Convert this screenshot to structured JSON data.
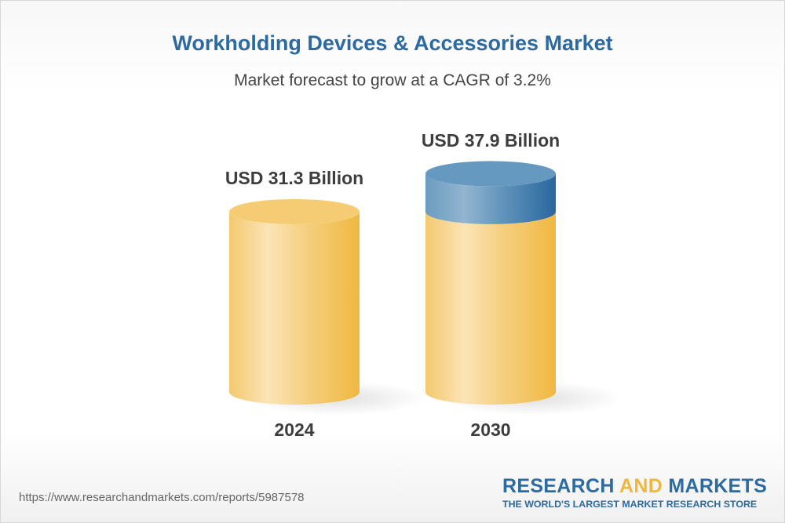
{
  "title": "Workholding Devices & Accessories Market",
  "subtitle": "Market forecast to grow at a CAGR of 3.2%",
  "chart_data": {
    "type": "bar",
    "style": "3d-cylinder",
    "categories": [
      "2024",
      "2030"
    ],
    "values": [
      31.3,
      37.9
    ],
    "data_labels": [
      "USD 31.3 Billion",
      "USD 37.9 Billion"
    ],
    "unit": "USD Billion",
    "grid": false,
    "colors": {
      "base": "#f2bb45",
      "highlight": "#fbe4b4",
      "growth": "#2c6aa0",
      "growth_highlight": "#8fb2cc"
    }
  },
  "footer": {
    "url": "https://www.researchandmarkets.com/reports/5987578",
    "logo_word1": "RESEARCH",
    "logo_word2": "AND",
    "logo_word3": "MARKETS",
    "tagline": "THE WORLD'S LARGEST MARKET RESEARCH STORE"
  }
}
